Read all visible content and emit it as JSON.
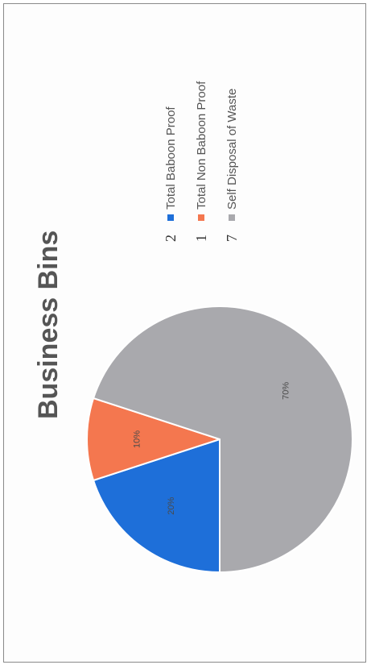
{
  "chart_data": {
    "type": "pie",
    "title": "Business Bins",
    "series": [
      {
        "name": "Total Baboon Proof",
        "count": "2",
        "value": 20,
        "label": "20%",
        "color": "#1e6fd9"
      },
      {
        "name": "Total Non Baboon Proof",
        "count": "1",
        "value": 10,
        "label": "10%",
        "color": "#f4774f"
      },
      {
        "name": "Self Disposal of Waste",
        "count": "7",
        "value": 70,
        "label": "70%",
        "color": "#a9a9ad"
      }
    ],
    "legend_position": "right"
  }
}
